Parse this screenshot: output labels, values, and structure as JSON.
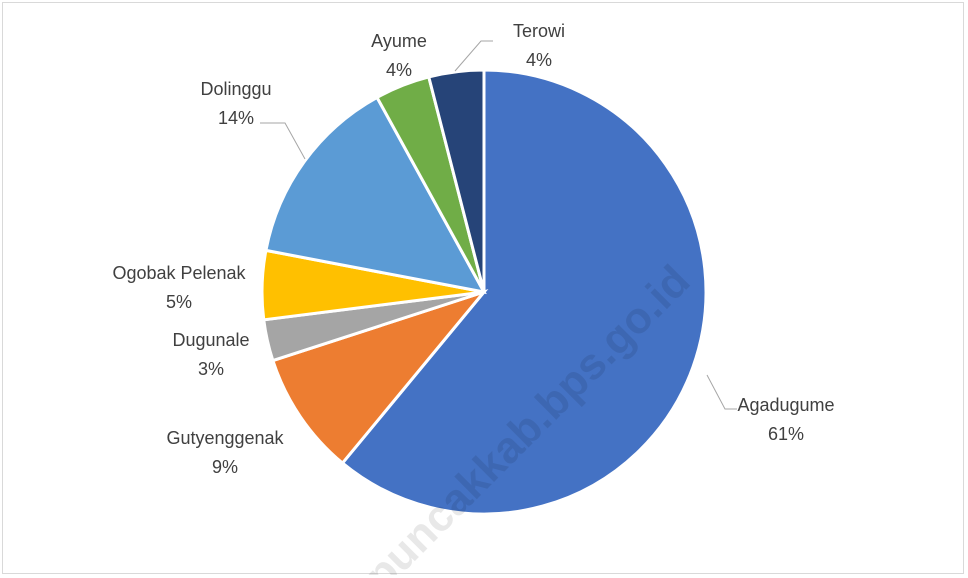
{
  "chart_data": {
    "type": "pie",
    "title": "",
    "start_angle_deg": 0,
    "direction": "clockwise",
    "slices": [
      {
        "name": "Agadugume",
        "value": 61,
        "label": "61%",
        "color": "#4472C4"
      },
      {
        "name": "Gutyenggenak",
        "value": 9,
        "label": "9%",
        "color": "#ED7D31"
      },
      {
        "name": "Dugunale",
        "value": 3,
        "label": "3%",
        "color": "#A5A5A5"
      },
      {
        "name": "Ogobak Pelenak",
        "value": 5,
        "label": "5%",
        "color": "#FFC000"
      },
      {
        "name": "Dolinggu",
        "value": 14,
        "label": "14%",
        "color": "#5B9BD5"
      },
      {
        "name": "Ayume",
        "value": 4,
        "label": "4%",
        "color": "#70AD47"
      },
      {
        "name": "Terowi",
        "value": 4,
        "label": "4%",
        "color": "#264478"
      }
    ],
    "legend": "none",
    "data_labels": "outside with leader lines"
  },
  "watermark": "puncakkab.bps.go.id"
}
